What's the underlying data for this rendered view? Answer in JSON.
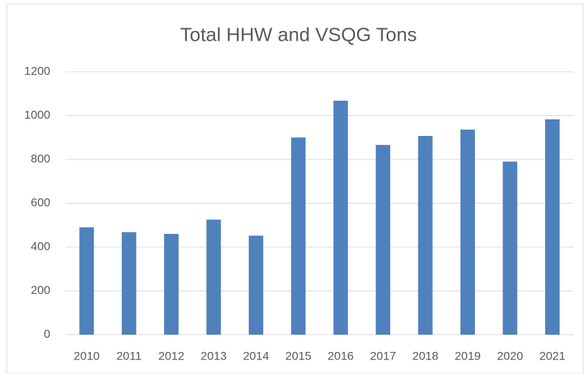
{
  "chart_data": {
    "type": "bar",
    "title": "Total HHW and VSQG Tons",
    "categories": [
      "2010",
      "2011",
      "2012",
      "2013",
      "2014",
      "2015",
      "2016",
      "2017",
      "2018",
      "2019",
      "2020",
      "2021"
    ],
    "values": [
      490,
      468,
      460,
      525,
      452,
      900,
      1068,
      866,
      907,
      936,
      790,
      983
    ],
    "color": "#4f81bd",
    "ylim": [
      0,
      1200
    ],
    "yticks": [
      0,
      200,
      400,
      600,
      800,
      1000,
      1200
    ],
    "grid": true
  }
}
